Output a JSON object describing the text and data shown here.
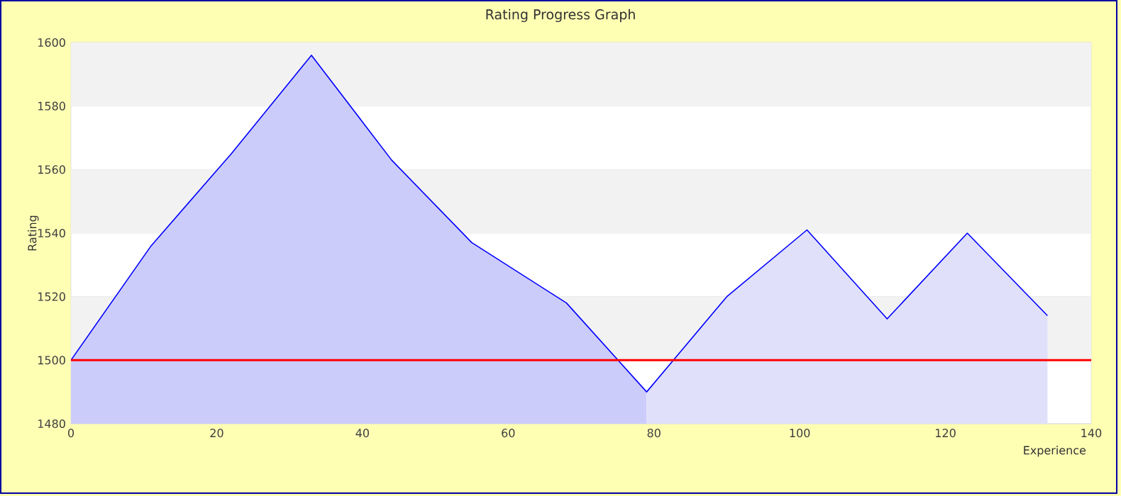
{
  "chart_data": {
    "type": "area",
    "title": "Rating Progress Graph",
    "xlabel": "Experience",
    "ylabel": "Rating",
    "series": [
      {
        "color": "#ccccfa",
        "x": [
          0,
          11,
          22,
          33,
          44,
          55,
          68,
          79
        ],
        "values": [
          1500,
          1536,
          1565,
          1596,
          1563,
          1537,
          1518,
          1490
        ]
      },
      {
        "color": "#e0e0fa",
        "x": [
          79,
          90,
          101,
          112,
          123,
          134
        ],
        "values": [
          1490,
          1520,
          1541,
          1513,
          1540,
          1514
        ]
      },
      {
        "type": "line",
        "color": "#0000ff",
        "x": [
          0,
          11,
          22,
          33,
          44,
          55,
          68,
          79,
          90,
          101,
          112,
          123,
          134
        ],
        "values": [
          1500,
          1536,
          1565,
          1596,
          1563,
          1537,
          1518,
          1490,
          1520,
          1541,
          1513,
          1540,
          1514
        ]
      }
    ],
    "xlim": [
      0,
      140
    ],
    "ylim": [
      1480,
      1600
    ],
    "xticks": [
      0,
      20,
      40,
      60,
      80,
      100,
      120,
      140
    ],
    "yticks": [
      1480,
      1500,
      1520,
      1540,
      1560,
      1580,
      1600
    ],
    "ref_lines": [
      {
        "axis": "y",
        "value": 1500,
        "color": "#ff0000"
      }
    ],
    "grid": "y",
    "marker": "none",
    "line_style": "solid"
  }
}
